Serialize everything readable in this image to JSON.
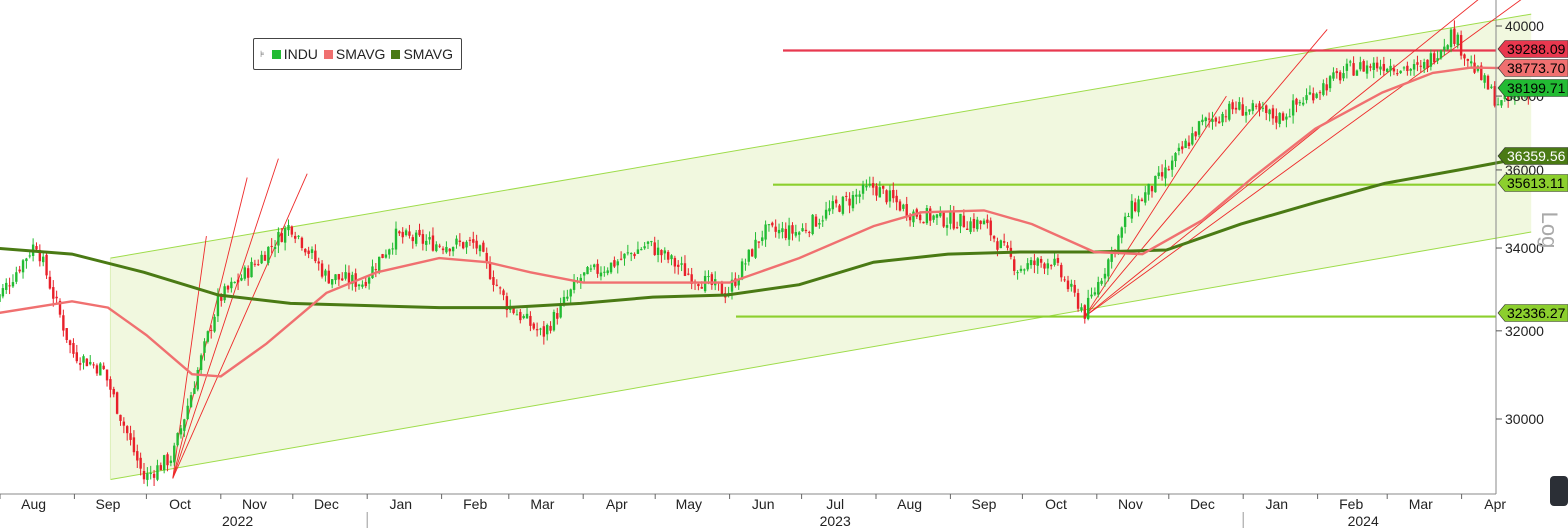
{
  "chart_data": {
    "type": "candlestick",
    "scale": "log",
    "log_label": "Log",
    "x_months": [
      "Aug",
      "Sep",
      "Oct",
      "Nov",
      "Dec",
      "Jan",
      "Feb",
      "Mar",
      "Apr",
      "May",
      "Jun",
      "Jul",
      "Aug",
      "Sep",
      "Oct",
      "Nov",
      "Dec",
      "Jan",
      "Feb",
      "Mar",
      "Apr"
    ],
    "x_years": [
      "2022",
      "2023",
      "2024"
    ],
    "y_ticks": [
      "30000",
      "32000",
      "34000",
      "36000",
      "38000",
      "40000"
    ],
    "legend": [
      {
        "name": "INDU",
        "color": "#22bb33"
      },
      {
        "name": "SMAVG",
        "color": "#f07070"
      },
      {
        "name": "SMAVG",
        "color": "#4a7a14"
      }
    ],
    "last_values": [
      {
        "label": "39288.09",
        "color": "#e8384f",
        "text_color": "#000000"
      },
      {
        "label": "38773.70",
        "color": "#f07070",
        "text_color": "#000000"
      },
      {
        "label": "38199.71",
        "color": "#22bb33",
        "text_color": "#000000"
      },
      {
        "label": "36359.56",
        "color": "#4a7a14",
        "text_color": "#ffffff"
      },
      {
        "label": "35613.11",
        "color": "#8ccf2e",
        "text_color": "#000000"
      },
      {
        "label": "32336.27",
        "color": "#8ccf2e",
        "text_color": "#000000"
      }
    ],
    "horizontal_levels": [
      39288.09,
      35613.11,
      32336.27
    ],
    "sma_short_last": 38773.7,
    "sma_long_last": 36359.56,
    "indu_last": 38199.71,
    "price_path": [
      [
        "2022-07-29",
        32600
      ],
      [
        "2022-08-16",
        34150
      ],
      [
        "2022-08-31",
        31500
      ],
      [
        "2022-09-13",
        31100
      ],
      [
        "2022-09-30",
        28725
      ],
      [
        "2022-10-12",
        29200
      ],
      [
        "2022-10-31",
        32730
      ],
      [
        "2022-11-15",
        33600
      ],
      [
        "2022-11-30",
        34590
      ],
      [
        "2022-12-15",
        33300
      ],
      [
        "2022-12-30",
        33150
      ],
      [
        "2023-01-13",
        34300
      ],
      [
        "2023-01-31",
        34090
      ],
      [
        "2023-02-15",
        34100
      ],
      [
        "2023-02-28",
        32650
      ],
      [
        "2023-03-15",
        31900
      ],
      [
        "2023-03-31",
        33270
      ],
      [
        "2023-04-13",
        33600
      ],
      [
        "2023-04-28",
        34100
      ],
      [
        "2023-05-15",
        33350
      ],
      [
        "2023-05-31",
        32900
      ],
      [
        "2023-06-15",
        34400
      ],
      [
        "2023-06-30",
        34400
      ],
      [
        "2023-07-14",
        35000
      ],
      [
        "2023-07-31",
        35560
      ],
      [
        "2023-08-15",
        34900
      ],
      [
        "2023-08-31",
        34700
      ],
      [
        "2023-09-15",
        34600
      ],
      [
        "2023-09-29",
        33500
      ],
      [
        "2023-10-13",
        33700
      ],
      [
        "2023-10-27",
        32420
      ],
      [
        "2023-11-15",
        34950
      ],
      [
        "2023-11-30",
        35950
      ],
      [
        "2023-12-14",
        37200
      ],
      [
        "2023-12-29",
        37690
      ],
      [
        "2024-01-16",
        37400
      ],
      [
        "2024-01-31",
        38150
      ],
      [
        "2024-02-15",
        38780
      ],
      [
        "2024-02-29",
        38900
      ],
      [
        "2024-03-15",
        38720
      ],
      [
        "2024-03-28",
        39810
      ],
      [
        "2024-04-05",
        38900
      ],
      [
        "2024-04-17",
        37750
      ],
      [
        "2024-04-30",
        38200
      ]
    ],
    "sma_short_path": [
      [
        "2022-07-29",
        32400
      ],
      [
        "2022-08-31",
        32700
      ],
      [
        "2022-09-15",
        32550
      ],
      [
        "2022-10-01",
        31900
      ],
      [
        "2022-10-20",
        31000
      ],
      [
        "2022-11-01",
        30950
      ],
      [
        "2022-11-20",
        31700
      ],
      [
        "2022-12-15",
        32900
      ],
      [
        "2023-01-05",
        33400
      ],
      [
        "2023-01-31",
        33750
      ],
      [
        "2023-02-20",
        33650
      ],
      [
        "2023-03-10",
        33400
      ],
      [
        "2023-04-01",
        33150
      ],
      [
        "2023-05-01",
        33150
      ],
      [
        "2023-06-01",
        33150
      ],
      [
        "2023-06-30",
        33750
      ],
      [
        "2023-07-31",
        34550
      ],
      [
        "2023-08-20",
        34900
      ],
      [
        "2023-09-15",
        34950
      ],
      [
        "2023-10-05",
        34600
      ],
      [
        "2023-10-31",
        33900
      ],
      [
        "2023-11-20",
        33850
      ],
      [
        "2023-12-15",
        34700
      ],
      [
        "2024-01-05",
        35800
      ],
      [
        "2024-01-31",
        37100
      ],
      [
        "2024-02-28",
        38100
      ],
      [
        "2024-03-20",
        38650
      ],
      [
        "2024-04-05",
        38800
      ],
      [
        "2024-04-30",
        38773.7
      ]
    ],
    "sma_long_path": [
      [
        "2022-07-29",
        34000
      ],
      [
        "2022-08-31",
        33850
      ],
      [
        "2022-09-30",
        33400
      ],
      [
        "2022-10-31",
        32850
      ],
      [
        "2022-11-30",
        32650
      ],
      [
        "2022-12-31",
        32600
      ],
      [
        "2023-01-31",
        32550
      ],
      [
        "2023-02-28",
        32550
      ],
      [
        "2023-03-31",
        32650
      ],
      [
        "2023-04-30",
        32800
      ],
      [
        "2023-05-31",
        32850
      ],
      [
        "2023-06-30",
        33100
      ],
      [
        "2023-07-31",
        33650
      ],
      [
        "2023-08-31",
        33850
      ],
      [
        "2023-09-30",
        33900
      ],
      [
        "2023-10-31",
        33900
      ],
      [
        "2023-11-30",
        33950
      ],
      [
        "2023-12-31",
        34600
      ],
      [
        "2024-01-31",
        35150
      ],
      [
        "2024-02-29",
        35650
      ],
      [
        "2024-03-31",
        36000
      ],
      [
        "2024-04-30",
        36359.56
      ]
    ],
    "channel": {
      "upper": [
        [
          "2022-09-16",
          33750
        ],
        [
          "2024-04-30",
          40350
        ]
      ],
      "lower": [
        [
          "2022-09-16",
          28700
        ],
        [
          "2024-04-30",
          34400
        ]
      ]
    },
    "fan_lines": [
      {
        "from": [
          "2022-10-12",
          28725
        ],
        "to": [
          "2022-10-26",
          34300
        ]
      },
      {
        "from": [
          "2022-10-12",
          28725
        ],
        "to": [
          "2022-11-12",
          35800
        ]
      },
      {
        "from": [
          "2022-10-12",
          28725
        ],
        "to": [
          "2022-11-25",
          36300
        ]
      },
      {
        "from": [
          "2022-10-12",
          28725
        ],
        "to": [
          "2022-12-07",
          35900
        ]
      },
      {
        "from": [
          "2023-10-27",
          32336
        ],
        "to": [
          "2023-12-25",
          38000
        ]
      },
      {
        "from": [
          "2023-10-27",
          32336
        ],
        "to": [
          "2024-02-05",
          39900
        ]
      },
      {
        "from": [
          "2023-10-27",
          32336
        ],
        "to": [
          "2024-04-10",
          40900
        ]
      },
      {
        "from": [
          "2023-10-27",
          32336
        ],
        "to": [
          "2024-04-30",
          41000
        ]
      }
    ]
  }
}
